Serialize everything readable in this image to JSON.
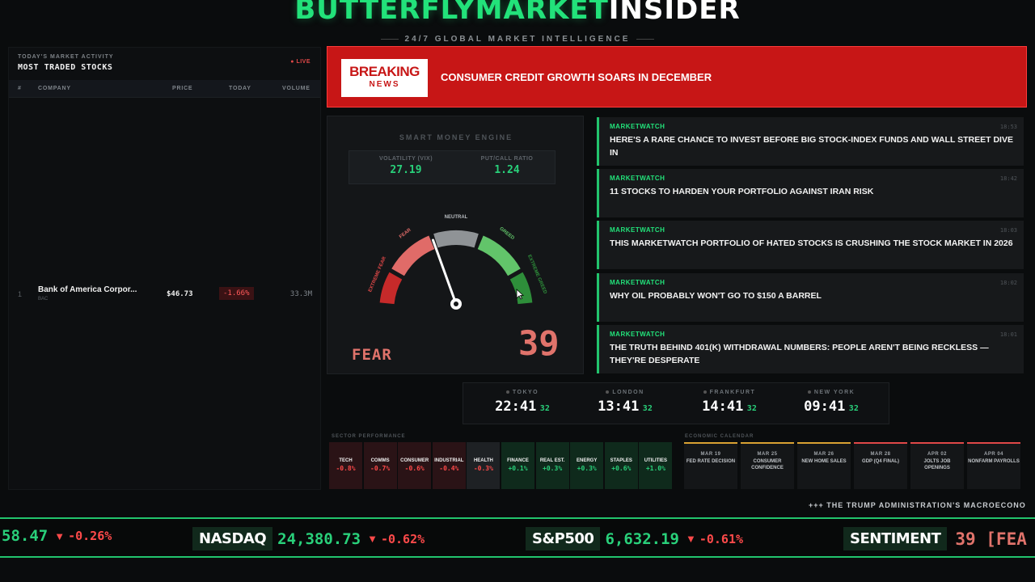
{
  "header": {
    "brand_primary": "BUTTERFLYMARKET",
    "brand_secondary": "INSIDER",
    "tagline": "24/7 GLOBAL MARKET INTELLIGENCE"
  },
  "most_traded": {
    "kicker": "TODAY'S MARKET ACTIVITY",
    "title": "MOST TRADED STOCKS",
    "live_label": "● LIVE",
    "columns": [
      "#",
      "COMPANY",
      "PRICE",
      "TODAY",
      "VOLUME"
    ],
    "rows": [
      {
        "rank": "1",
        "company": "Bank of America Corpor...",
        "ticker": "BAC",
        "price": "$46.73",
        "change": "-1.66%",
        "volume": "33.3M"
      }
    ]
  },
  "breaking": {
    "logo_line1": "BREAKING",
    "logo_line2": "NEWS",
    "headline": "CONSUMER CREDIT GROWTH SOARS IN DECEMBER"
  },
  "engine": {
    "title": "SMART MONEY ENGINE",
    "vix_label": "VOLATILITY (VIX)",
    "vix_value": "27.19",
    "pcr_label": "PUT/CALL RATIO",
    "pcr_value": "1.24",
    "zones": [
      "EXTREME FEAR",
      "FEAR",
      "NEUTRAL",
      "GREED",
      "EXTREME GREED"
    ],
    "mood": "FEAR",
    "score": "39",
    "needle_value": 39
  },
  "news": [
    {
      "source": "MARKETWATCH",
      "time": "18:53",
      "headline": "HERE'S A RARE CHANCE TO INVEST BEFORE BIG STOCK-INDEX FUNDS AND WALL STREET DIVE IN"
    },
    {
      "source": "MARKETWATCH",
      "time": "18:42",
      "headline": "11 STOCKS TO HARDEN YOUR PORTFOLIO AGAINST IRAN RISK"
    },
    {
      "source": "MARKETWATCH",
      "time": "18:03",
      "headline": "THIS MARKETWATCH PORTFOLIO OF HATED STOCKS IS CRUSHING THE STOCK MARKET IN 2026"
    },
    {
      "source": "MARKETWATCH",
      "time": "18:02",
      "headline": "WHY OIL PROBABLY WON'T GO TO $150 A BARREL"
    },
    {
      "source": "MARKETWATCH",
      "time": "18:01",
      "headline": "THE TRUTH BEHIND 401(K) WITHDRAWAL NUMBERS: PEOPLE AREN'T BEING RECKLESS — THEY'RE DESPERATE"
    }
  ],
  "clocks": [
    {
      "city": "TOKYO",
      "time": "22:41",
      "sec": "32"
    },
    {
      "city": "LONDON",
      "time": "13:41",
      "sec": "32"
    },
    {
      "city": "FRANKFURT",
      "time": "14:41",
      "sec": "32"
    },
    {
      "city": "NEW YORK",
      "time": "09:41",
      "sec": "32"
    }
  ],
  "sectors": {
    "label": "SECTOR PERFORMANCE",
    "items": [
      {
        "name": "TECH",
        "value": "-0.8%",
        "dir": "down"
      },
      {
        "name": "COMMS",
        "value": "-0.7%",
        "dir": "down"
      },
      {
        "name": "CONSUMER",
        "value": "-0.6%",
        "dir": "down"
      },
      {
        "name": "INDUSTRIAL",
        "value": "-0.4%",
        "dir": "down"
      },
      {
        "name": "HEALTH",
        "value": "-0.3%",
        "dir": "down"
      },
      {
        "name": "FINANCE",
        "value": "+0.1%",
        "dir": "up"
      },
      {
        "name": "REAL EST.",
        "value": "+0.3%",
        "dir": "up"
      },
      {
        "name": "ENERGY",
        "value": "+0.3%",
        "dir": "up"
      },
      {
        "name": "STAPLES",
        "value": "+0.6%",
        "dir": "up"
      },
      {
        "name": "UTILITIES",
        "value": "+1.0%",
        "dir": "up"
      }
    ]
  },
  "calendar": {
    "label": "ECONOMIC CALENDAR",
    "events": [
      {
        "date": "MAR 19",
        "name": "FED RATE DECISION",
        "accent": "#d9a233"
      },
      {
        "date": "MAR 25",
        "name": "CONSUMER CONFIDENCE",
        "accent": "#d9a233"
      },
      {
        "date": "MAR 26",
        "name": "NEW HOME SALES",
        "accent": "#d9a233"
      },
      {
        "date": "MAR 28",
        "name": "GDP (Q4 FINAL)",
        "accent": "#e04848"
      },
      {
        "date": "APR 02",
        "name": "JOLTS JOB OPENINGS",
        "accent": "#e04848"
      },
      {
        "date": "APR 04",
        "name": "NONFARM PAYROLLS",
        "accent": "#e04848"
      }
    ]
  },
  "crawl": "+++ THE TRUMP ADMINISTRATION'S MACROECONO",
  "ticker": {
    "partial_value": "58.47",
    "partial_change": "-0.26%",
    "items": [
      {
        "name": "NASDAQ",
        "value": "24,380.73",
        "change": "-0.62%"
      },
      {
        "name": "S&P500",
        "value": "6,632.19",
        "change": "-0.61%"
      }
    ],
    "sentiment_name": "SENTIMENT",
    "sentiment_value": "39 [FEA",
    "down_arrow": "▼"
  },
  "colors": {
    "accent_green": "#22e27a",
    "breaking_red": "#c71616",
    "fear": "#e0736b",
    "down": "#ff4a4a",
    "up": "#29d07a"
  }
}
